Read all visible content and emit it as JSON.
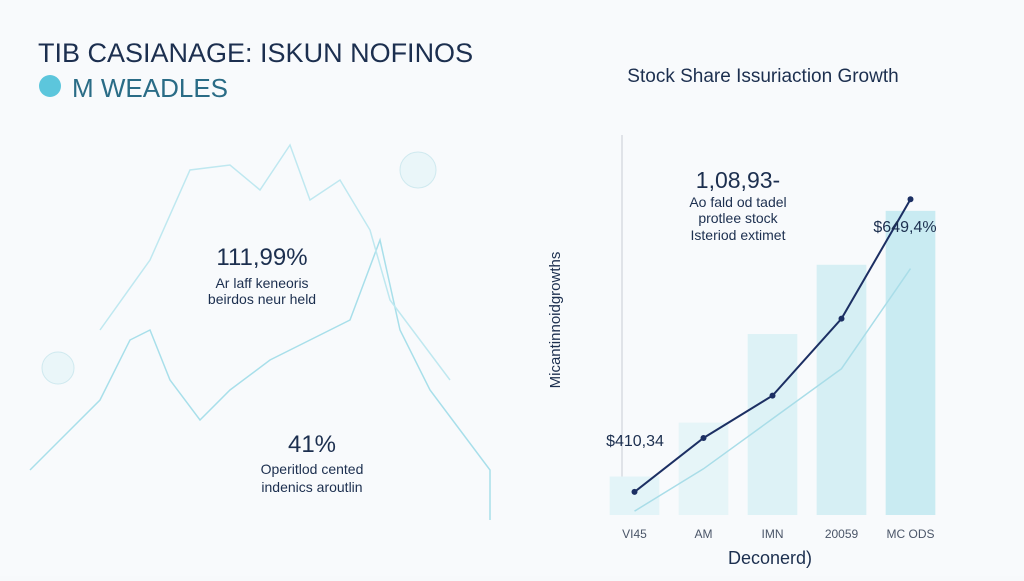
{
  "header": {
    "title": "TIB CASIANAGE: ISKUN NOFINOS",
    "subtitle": "M WEADLES"
  },
  "left_panel": {
    "stat1": "111,99%",
    "stat1_caption": [
      "Ar laff keneoris",
      "beirdos neur held"
    ],
    "stat2": "41%",
    "stat2_caption": [
      "Operitlod cented",
      "indenics aroutlin"
    ]
  },
  "chart_data": {
    "type": "bar",
    "title": "Stock Share Issuriaction Growth",
    "x_label": "Deconerd)",
    "y_label": "Micantinnoidgrowths",
    "categories": [
      "VI45",
      "AM",
      "IMN",
      "20059",
      "MC ODS"
    ],
    "values": [
      10,
      24,
      47,
      65,
      79
    ],
    "colors": [
      "#e3f4f8",
      "#e6f5f8",
      "#ddf2f6",
      "#d6eff4",
      "#c9ebf2"
    ],
    "series": [
      {
        "color": "#1c2f63",
        "values": [
          6,
          20,
          31,
          51,
          82
        ]
      },
      {
        "color": "#a9dde8",
        "values": [
          1,
          12,
          25,
          38,
          64
        ]
      }
    ],
    "ylim": [
      0,
      100
    ],
    "annotations": [
      "$410,34",
      "1,08,93-",
      "Ao fald od tadel",
      "protlee stock",
      "Isteriod extimet",
      "$649,4%"
    ]
  }
}
